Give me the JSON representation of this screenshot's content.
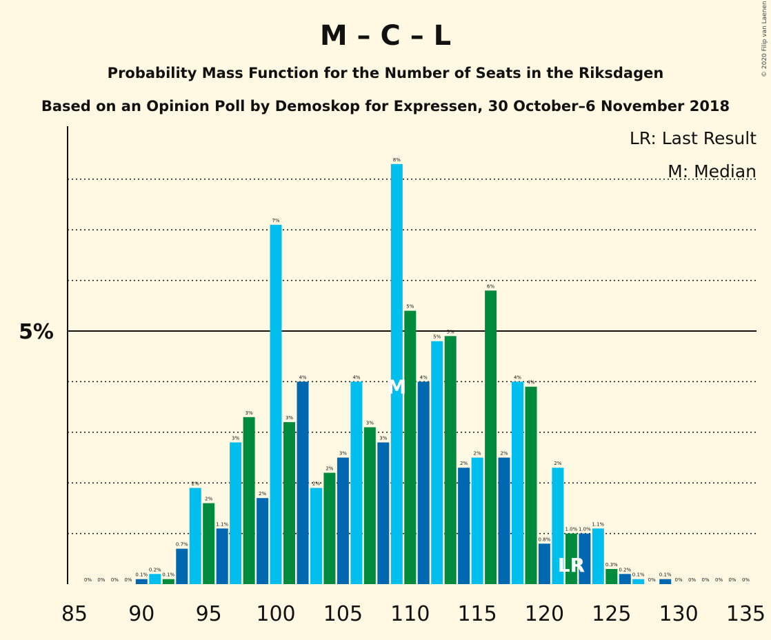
{
  "header": {
    "title": "M – C – L",
    "subtitle": "Probability Mass Function for the Number of Seats in the Riksdagen",
    "source": "Based on an Opinion Poll by Demoskop for Expressen, 30 October–6 November 2018"
  },
  "legend": {
    "last_result": "LR: Last Result",
    "median": "M: Median"
  },
  "copyright": "© 2020 Filip van Laenen",
  "colors": {
    "background": "#FFF9E3",
    "cyan": "#00BFEF",
    "green": "#008A3E",
    "blue": "#0068B0"
  },
  "chart_data": {
    "type": "bar",
    "xlim": [
      85,
      135
    ],
    "ylim": [
      0,
      9
    ],
    "x_ticks": [
      85,
      90,
      95,
      100,
      105,
      110,
      115,
      120,
      125,
      130,
      135
    ],
    "y_ticks": [
      {
        "value": 5,
        "label": "5%"
      }
    ],
    "gridlines": [
      1,
      2,
      3,
      4,
      5,
      6,
      7,
      8
    ],
    "bars": [
      {
        "seats": 86,
        "value": 0.0,
        "label": "0%",
        "color": "cyan"
      },
      {
        "seats": 87,
        "value": 0.0,
        "label": "0%",
        "color": "green"
      },
      {
        "seats": 88,
        "value": 0.0,
        "label": "0%",
        "color": "blue"
      },
      {
        "seats": 89,
        "value": 0.0,
        "label": "0%",
        "color": "cyan"
      },
      {
        "seats": 90,
        "value": 0.1,
        "label": "0.1%",
        "color": "blue"
      },
      {
        "seats": 91,
        "value": 0.2,
        "label": "0.2%",
        "color": "cyan"
      },
      {
        "seats": 92,
        "value": 0.1,
        "label": "0.1%",
        "color": "green"
      },
      {
        "seats": 93,
        "value": 0.7,
        "label": "0.7%",
        "color": "blue"
      },
      {
        "seats": 94,
        "value": 1.9,
        "label": "2%",
        "color": "cyan"
      },
      {
        "seats": 95,
        "value": 1.6,
        "label": "2%",
        "color": "green"
      },
      {
        "seats": 96,
        "value": 1.1,
        "label": "1.1%",
        "color": "blue"
      },
      {
        "seats": 97,
        "value": 2.8,
        "label": "3%",
        "color": "cyan"
      },
      {
        "seats": 98,
        "value": 3.3,
        "label": "3%",
        "color": "green"
      },
      {
        "seats": 99,
        "value": 1.7,
        "label": "2%",
        "color": "blue"
      },
      {
        "seats": 100,
        "value": 7.1,
        "label": "7%",
        "color": "cyan"
      },
      {
        "seats": 101,
        "value": 3.2,
        "label": "3%",
        "color": "green"
      },
      {
        "seats": 102,
        "value": 4.0,
        "label": "4%",
        "color": "blue"
      },
      {
        "seats": 103,
        "value": 1.9,
        "label": "2%",
        "color": "cyan"
      },
      {
        "seats": 104,
        "value": 2.2,
        "label": "2%",
        "color": "green"
      },
      {
        "seats": 105,
        "value": 2.5,
        "label": "3%",
        "color": "blue"
      },
      {
        "seats": 106,
        "value": 4.0,
        "label": "4%",
        "color": "cyan"
      },
      {
        "seats": 107,
        "value": 3.1,
        "label": "3%",
        "color": "green"
      },
      {
        "seats": 108,
        "value": 2.8,
        "label": "3%",
        "color": "blue"
      },
      {
        "seats": 109,
        "value": 8.3,
        "label": "8%",
        "color": "cyan"
      },
      {
        "seats": 110,
        "value": 5.4,
        "label": "5%",
        "color": "green"
      },
      {
        "seats": 111,
        "value": 4.0,
        "label": "4%",
        "color": "blue"
      },
      {
        "seats": 112,
        "value": 4.8,
        "label": "5%",
        "color": "cyan"
      },
      {
        "seats": 113,
        "value": 4.9,
        "label": "5%",
        "color": "green"
      },
      {
        "seats": 114,
        "value": 2.3,
        "label": "2%",
        "color": "blue"
      },
      {
        "seats": 115,
        "value": 2.5,
        "label": "2%",
        "color": "cyan"
      },
      {
        "seats": 116,
        "value": 5.8,
        "label": "6%",
        "color": "green"
      },
      {
        "seats": 117,
        "value": 2.5,
        "label": "2%",
        "color": "blue"
      },
      {
        "seats": 118,
        "value": 4.0,
        "label": "4%",
        "color": "cyan"
      },
      {
        "seats": 119,
        "value": 3.9,
        "label": "4%",
        "color": "green"
      },
      {
        "seats": 120,
        "value": 0.8,
        "label": "0.8%",
        "color": "blue"
      },
      {
        "seats": 121,
        "value": 2.3,
        "label": "2%",
        "color": "cyan"
      },
      {
        "seats": 122,
        "value": 1.0,
        "label": "1.0%",
        "color": "green"
      },
      {
        "seats": 123,
        "value": 1.0,
        "label": "1.0%",
        "color": "blue"
      },
      {
        "seats": 124,
        "value": 1.1,
        "label": "1.1%",
        "color": "cyan"
      },
      {
        "seats": 125,
        "value": 0.3,
        "label": "0.3%",
        "color": "green"
      },
      {
        "seats": 126,
        "value": 0.2,
        "label": "0.2%",
        "color": "blue"
      },
      {
        "seats": 127,
        "value": 0.1,
        "label": "0.1%",
        "color": "cyan"
      },
      {
        "seats": 128,
        "value": 0.0,
        "label": "0%",
        "color": "green"
      },
      {
        "seats": 129,
        "value": 0.1,
        "label": "0.1%",
        "color": "blue"
      },
      {
        "seats": 130,
        "value": 0.0,
        "label": "0%",
        "color": "cyan"
      },
      {
        "seats": 131,
        "value": 0.0,
        "label": "0%",
        "color": "green"
      },
      {
        "seats": 132,
        "value": 0.0,
        "label": "0%",
        "color": "blue"
      },
      {
        "seats": 133,
        "value": 0.0,
        "label": "0%",
        "color": "cyan"
      },
      {
        "seats": 134,
        "value": 0.0,
        "label": "0%",
        "color": "green"
      },
      {
        "seats": 135,
        "value": 0.0,
        "label": "0%",
        "color": "blue"
      }
    ],
    "median": {
      "seats": 109,
      "label": "M"
    },
    "last_result": {
      "seats": 122,
      "label": "LR"
    }
  }
}
